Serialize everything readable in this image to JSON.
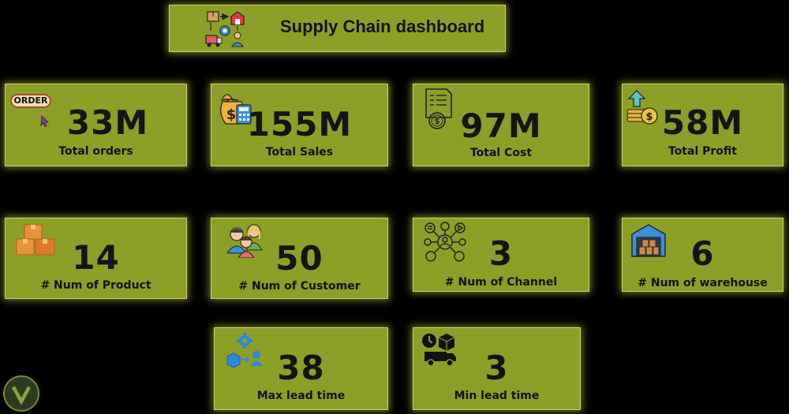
{
  "header": {
    "title": "Supply Chain dashboard",
    "icon": "supply-chain-icon"
  },
  "kpis": [
    {
      "id": "total-orders",
      "value": "33M",
      "label": "Total orders",
      "icon": "order-tag-icon",
      "icon_text": "ORDER"
    },
    {
      "id": "total-sales",
      "value": "155M",
      "label": "Total Sales",
      "icon": "money-bag-calculator-icon"
    },
    {
      "id": "total-cost",
      "value": "97M",
      "label": "Total Cost",
      "icon": "invoice-coin-icon"
    },
    {
      "id": "total-profit",
      "value": "58M",
      "label": "Total Profit",
      "icon": "coins-growth-icon"
    },
    {
      "id": "num-product",
      "value": "14",
      "label": "# Num of Product",
      "icon": "boxes-icon"
    },
    {
      "id": "num-customer",
      "value": "50",
      "label": "# Num of Customer",
      "icon": "customers-icon"
    },
    {
      "id": "num-channel",
      "value": "3",
      "label": "# Num of Channel",
      "icon": "channel-network-icon"
    },
    {
      "id": "num-warehouse",
      "value": "6",
      "label": "# Num of warehouse",
      "icon": "warehouse-icon"
    },
    {
      "id": "max-lead-time",
      "value": "38",
      "label": "Max lead time",
      "icon": "logistics-gear-icon"
    },
    {
      "id": "min-lead-time",
      "value": "3",
      "label": "Min lead time",
      "icon": "delivery-truck-icon"
    }
  ],
  "colors": {
    "card": "#8c9f27",
    "glow": "#c9d36a",
    "background": "#000000",
    "text": "#141414"
  }
}
